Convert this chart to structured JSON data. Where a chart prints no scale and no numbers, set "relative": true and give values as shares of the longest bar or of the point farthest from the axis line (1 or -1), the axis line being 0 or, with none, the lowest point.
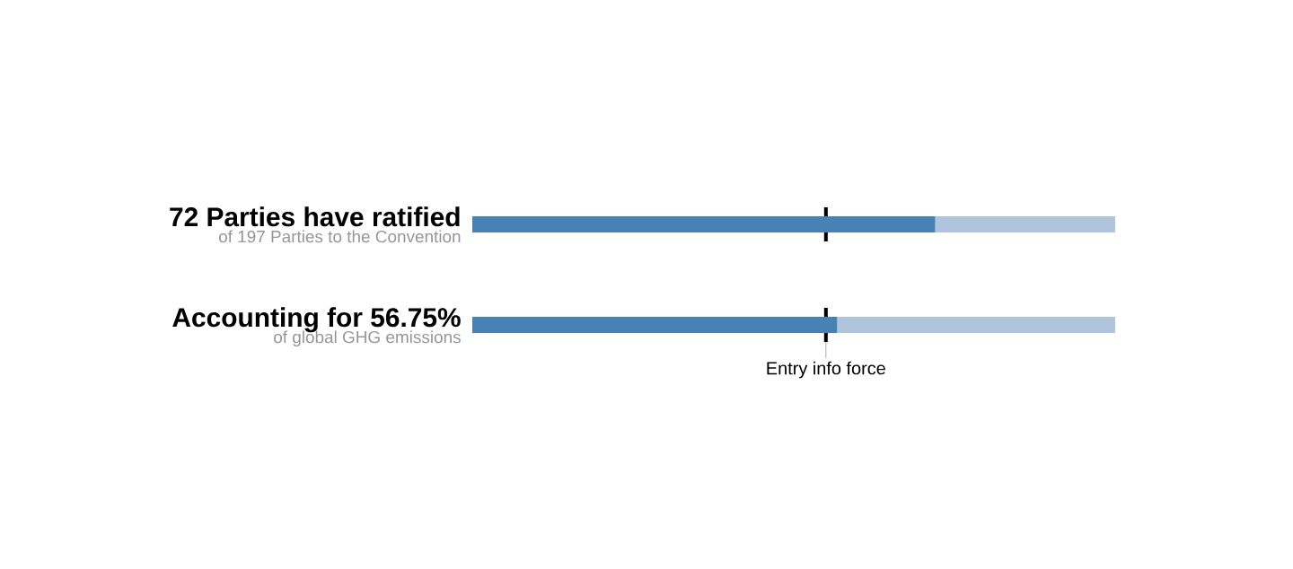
{
  "chart_data": {
    "type": "bar",
    "orientation": "horizontal",
    "relative": true,
    "categories": [
      "72 Parties have ratified",
      "Accounting for 56.75%"
    ],
    "stacked": true,
    "series": [
      {
        "color": "#4682b4",
        "values": [
          0.72,
          0.5675
        ]
      },
      {
        "color": "#b0c4de",
        "values": [
          0.28,
          0.4325
        ]
      }
    ],
    "ref_lines": [
      {
        "axis": "x",
        "value": 0.55,
        "label": "Entry info force",
        "color": "#000000"
      }
    ],
    "annotations": [
      "of 197 Parties to the Convention",
      "of global GHG emissions"
    ]
  }
}
